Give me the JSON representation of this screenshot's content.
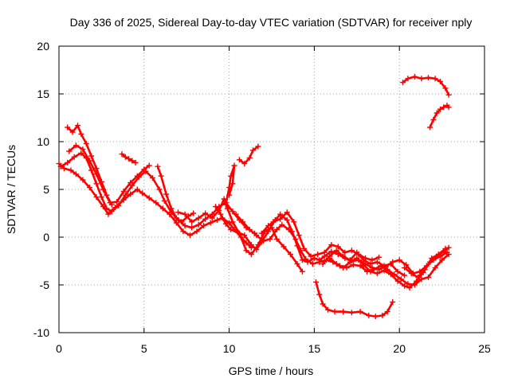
{
  "chart_data": {
    "type": "line",
    "title": "Day 336 of 2025, Sidereal Day-to-day VTEC variation (SDTVAR) for receiver nply",
    "xlabel": "GPS time / hours",
    "ylabel": "SDTVAR / TECUs",
    "xlim": [
      0,
      25
    ],
    "ylim": [
      -10,
      20
    ],
    "xticks": [
      "0",
      "5",
      "10",
      "15",
      "20",
      "25"
    ],
    "yticks": [
      "-10",
      "-5",
      "0",
      "5",
      "10",
      "15",
      "20"
    ],
    "grid": true,
    "series_color": "#ff0000",
    "marker": "plus",
    "series": [
      {
        "name": "trace-1",
        "points": [
          [
            0.0,
            7.7
          ],
          [
            0.3,
            7.2
          ],
          [
            0.7,
            7.0
          ],
          [
            1.0,
            6.6
          ],
          [
            1.4,
            6.0
          ],
          [
            1.8,
            5.2
          ],
          [
            2.2,
            4.2
          ],
          [
            2.6,
            3.2
          ],
          [
            2.9,
            2.4
          ],
          [
            3.3,
            3.1
          ],
          [
            3.8,
            3.9
          ],
          [
            4.2,
            4.5
          ],
          [
            4.6,
            5.0
          ],
          [
            4.9,
            4.6
          ],
          [
            5.3,
            4.1
          ],
          [
            5.7,
            3.6
          ],
          [
            6.1,
            3.0
          ],
          [
            6.5,
            2.4
          ],
          [
            6.9,
            1.5
          ],
          [
            7.3,
            0.6
          ],
          [
            7.7,
            0.2
          ],
          [
            8.1,
            0.6
          ],
          [
            8.5,
            1.2
          ],
          [
            8.9,
            1.5
          ],
          [
            9.3,
            1.8
          ],
          [
            9.6,
            2.0
          ],
          [
            10.0,
            1.5
          ],
          [
            10.3,
            0.8
          ],
          [
            10.7,
            0.0
          ],
          [
            11.0,
            -0.6
          ],
          [
            11.3,
            -1.1
          ]
        ]
      },
      {
        "name": "trace-2",
        "points": [
          [
            0.1,
            7.4
          ],
          [
            0.5,
            7.8
          ],
          [
            0.9,
            8.4
          ],
          [
            1.3,
            8.8
          ],
          [
            1.6,
            8.3
          ],
          [
            1.9,
            7.0
          ],
          [
            2.2,
            5.6
          ],
          [
            2.5,
            4.2
          ],
          [
            2.8,
            3.0
          ],
          [
            3.1,
            2.7
          ],
          [
            3.5,
            3.3
          ],
          [
            3.9,
            4.4
          ],
          [
            4.3,
            5.4
          ],
          [
            4.7,
            6.3
          ],
          [
            5.1,
            6.9
          ],
          [
            5.5,
            6.2
          ],
          [
            5.9,
            5.0
          ],
          [
            6.2,
            3.8
          ],
          [
            6.6,
            2.6
          ],
          [
            7.0,
            1.8
          ],
          [
            7.4,
            1.2
          ],
          [
            7.8,
            1.0
          ],
          [
            8.2,
            1.3
          ],
          [
            8.6,
            1.9
          ],
          [
            9.0,
            2.4
          ],
          [
            9.4,
            3.2
          ],
          [
            9.8,
            3.6
          ],
          [
            10.2,
            2.7
          ],
          [
            10.6,
            1.8
          ],
          [
            11.0,
            1.0
          ],
          [
            11.5,
            0.4
          ]
        ]
      },
      {
        "name": "trace-3",
        "points": [
          [
            0.6,
            9.0
          ],
          [
            1.0,
            9.6
          ],
          [
            1.4,
            9.2
          ],
          [
            1.8,
            8.0
          ],
          [
            2.2,
            6.6
          ],
          [
            2.6,
            5.0
          ],
          [
            3.0,
            3.6
          ],
          [
            3.4,
            3.7
          ],
          [
            3.8,
            4.8
          ],
          [
            4.2,
            5.7
          ],
          [
            4.6,
            6.4
          ],
          [
            5.0,
            7.1
          ],
          [
            5.3,
            7.5
          ]
        ]
      },
      {
        "name": "trace-4",
        "points": [
          [
            0.5,
            11.5
          ],
          [
            0.8,
            11.0
          ],
          [
            1.1,
            11.7
          ],
          [
            1.3,
            10.8
          ],
          [
            1.6,
            9.8
          ],
          [
            1.9,
            8.5
          ],
          [
            2.2,
            7.2
          ],
          [
            2.5,
            5.8
          ],
          [
            2.8,
            4.4
          ],
          [
            3.1,
            3.4
          ]
        ]
      },
      {
        "name": "trace-5",
        "points": [
          [
            3.7,
            8.7
          ],
          [
            3.9,
            8.4
          ],
          [
            4.1,
            8.2
          ],
          [
            4.3,
            8.0
          ],
          [
            4.5,
            7.8
          ]
        ]
      },
      {
        "name": "trace-6",
        "points": [
          [
            5.8,
            7.4
          ],
          [
            6.0,
            6.4
          ],
          [
            6.3,
            4.5
          ],
          [
            6.6,
            3.0
          ],
          [
            6.9,
            2.0
          ],
          [
            7.2,
            1.6
          ],
          [
            7.6,
            2.2
          ],
          [
            7.9,
            2.5
          ]
        ]
      },
      {
        "name": "trace-7",
        "points": [
          [
            9.8,
            3.4
          ],
          [
            10.0,
            5.2
          ],
          [
            10.1,
            6.4
          ],
          [
            10.3,
            7.5
          ],
          [
            10.2,
            5.6
          ],
          [
            10.0,
            4.4
          ]
        ]
      },
      {
        "name": "trace-8",
        "points": [
          [
            10.6,
            8.1
          ],
          [
            10.9,
            7.7
          ],
          [
            11.2,
            8.3
          ],
          [
            11.4,
            9.1
          ],
          [
            11.7,
            9.5
          ]
        ]
      },
      {
        "name": "trace-9",
        "points": [
          [
            9.2,
            3.2
          ],
          [
            9.5,
            2.4
          ],
          [
            9.8,
            1.4
          ],
          [
            10.1,
            0.8
          ],
          [
            10.5,
            0.5
          ],
          [
            10.9,
            0.2
          ],
          [
            11.3,
            -0.8
          ],
          [
            11.6,
            -1.3
          ],
          [
            11.9,
            -0.5
          ],
          [
            12.3,
            0.6
          ],
          [
            12.7,
            1.8
          ],
          [
            13.0,
            2.4
          ],
          [
            13.4,
            1.8
          ],
          [
            13.7,
            0.6
          ],
          [
            14.0,
            -0.9
          ],
          [
            14.3,
            -2.4
          ],
          [
            14.6,
            -2.6
          ],
          [
            15.0,
            -2.2
          ],
          [
            15.3,
            -2.4
          ],
          [
            15.6,
            -2.0
          ],
          [
            16.0,
            -1.5
          ],
          [
            16.4,
            -1.8
          ],
          [
            16.8,
            -2.2
          ],
          [
            17.2,
            -2.5
          ],
          [
            17.6,
            -2.4
          ],
          [
            18.0,
            -2.8
          ],
          [
            18.4,
            -3.2
          ],
          [
            18.8,
            -3.4
          ],
          [
            19.2,
            -3.1
          ],
          [
            19.6,
            -2.6
          ],
          [
            20.0,
            -2.4
          ],
          [
            20.4,
            -2.9
          ],
          [
            20.8,
            -3.8
          ],
          [
            21.2,
            -3.6
          ],
          [
            21.6,
            -3.0
          ],
          [
            22.0,
            -2.4
          ],
          [
            22.4,
            -2.0
          ],
          [
            22.8,
            -1.6
          ]
        ]
      },
      {
        "name": "trace-10",
        "points": [
          [
            10.4,
            2.4
          ],
          [
            10.8,
            1.6
          ],
          [
            11.2,
            0.8
          ],
          [
            11.6,
            0.2
          ],
          [
            12.0,
            -0.4
          ],
          [
            12.4,
            -0.2
          ],
          [
            12.8,
            0.8
          ],
          [
            13.1,
            1.3
          ],
          [
            13.5,
            0.8
          ],
          [
            13.9,
            -0.2
          ],
          [
            14.2,
            -1.4
          ],
          [
            14.5,
            -2.3
          ],
          [
            14.9,
            -2.8
          ],
          [
            15.3,
            -2.6
          ],
          [
            15.7,
            -2.4
          ],
          [
            16.1,
            -2.6
          ],
          [
            16.5,
            -3.0
          ],
          [
            16.9,
            -3.2
          ],
          [
            17.3,
            -2.9
          ],
          [
            17.7,
            -3.0
          ],
          [
            18.1,
            -3.6
          ],
          [
            18.5,
            -3.4
          ],
          [
            18.9,
            -3.0
          ],
          [
            19.3,
            -3.4
          ],
          [
            19.7,
            -3.9
          ],
          [
            20.1,
            -4.4
          ],
          [
            20.5,
            -4.9
          ],
          [
            20.9,
            -5.0
          ],
          [
            21.3,
            -4.4
          ],
          [
            21.7,
            -4.2
          ],
          [
            22.1,
            -3.2
          ],
          [
            22.5,
            -2.4
          ],
          [
            22.9,
            -1.8
          ]
        ]
      },
      {
        "name": "trace-11",
        "points": [
          [
            11.9,
            0.4
          ],
          [
            12.3,
            1.2
          ],
          [
            12.6,
            1.6
          ],
          [
            13.0,
            1.9
          ],
          [
            13.4,
            2.6
          ],
          [
            13.8,
            1.6
          ],
          [
            14.1,
            0.2
          ],
          [
            14.4,
            -1.2
          ],
          [
            14.8,
            -2.0
          ],
          [
            15.2,
            -1.8
          ],
          [
            15.6,
            -1.6
          ],
          [
            16.0,
            -0.8
          ],
          [
            16.4,
            -1.0
          ],
          [
            16.8,
            -1.6
          ],
          [
            17.2,
            -1.4
          ],
          [
            17.6,
            -1.8
          ],
          [
            18.0,
            -2.2
          ],
          [
            18.4,
            -2.4
          ],
          [
            18.8,
            -2.1
          ]
        ]
      },
      {
        "name": "trace-12",
        "points": [
          [
            15.9,
            -2.2
          ],
          [
            16.3,
            -2.8
          ],
          [
            16.7,
            -3.2
          ],
          [
            17.1,
            -2.6
          ],
          [
            17.5,
            -2.2
          ],
          [
            17.9,
            -2.9
          ],
          [
            18.3,
            -3.6
          ],
          [
            18.7,
            -3.8
          ],
          [
            19.1,
            -3.5
          ],
          [
            19.5,
            -3.9
          ],
          [
            19.9,
            -4.6
          ],
          [
            20.3,
            -5.1
          ],
          [
            20.6,
            -5.3
          ],
          [
            21.0,
            -4.6
          ],
          [
            21.4,
            -3.7
          ],
          [
            21.8,
            -2.6
          ],
          [
            22.2,
            -2.0
          ],
          [
            22.6,
            -1.5
          ],
          [
            22.9,
            -1.1
          ]
        ]
      },
      {
        "name": "trace-13",
        "points": [
          [
            15.1,
            -4.7
          ],
          [
            15.3,
            -6.0
          ],
          [
            15.5,
            -7.0
          ],
          [
            15.8,
            -7.6
          ],
          [
            16.2,
            -7.8
          ],
          [
            16.7,
            -7.8
          ],
          [
            17.2,
            -7.9
          ],
          [
            17.7,
            -7.8
          ],
          [
            18.2,
            -8.2
          ],
          [
            18.6,
            -8.3
          ],
          [
            19.0,
            -8.2
          ],
          [
            19.3,
            -7.8
          ],
          [
            19.6,
            -6.8
          ]
        ]
      },
      {
        "name": "trace-14",
        "points": [
          [
            20.2,
            16.2
          ],
          [
            20.5,
            16.6
          ],
          [
            20.9,
            16.8
          ],
          [
            21.3,
            16.6
          ],
          [
            21.7,
            16.7
          ],
          [
            22.1,
            16.6
          ],
          [
            22.4,
            16.3
          ],
          [
            22.7,
            15.6
          ],
          [
            22.9,
            14.9
          ]
        ]
      },
      {
        "name": "trace-15",
        "points": [
          [
            21.8,
            11.5
          ],
          [
            22.0,
            12.3
          ],
          [
            22.2,
            13.0
          ],
          [
            22.4,
            13.4
          ],
          [
            22.6,
            13.6
          ],
          [
            22.8,
            13.8
          ],
          [
            22.9,
            13.6
          ]
        ]
      },
      {
        "name": "trace-16",
        "points": [
          [
            7.0,
            2.6
          ],
          [
            7.4,
            2.4
          ],
          [
            7.8,
            1.6
          ],
          [
            8.2,
            2.0
          ],
          [
            8.6,
            2.5
          ],
          [
            9.0,
            2.0
          ],
          [
            9.4,
            2.8
          ],
          [
            9.7,
            4.0
          ],
          [
            9.9,
            3.0
          ],
          [
            10.2,
            1.6
          ],
          [
            10.6,
            0.4
          ],
          [
            11.0,
            -1.4
          ],
          [
            11.3,
            -1.8
          ],
          [
            11.7,
            -0.8
          ],
          [
            12.1,
            0.6
          ],
          [
            12.5,
            1.0
          ],
          [
            12.8,
            -0.2
          ],
          [
            13.2,
            -1.0
          ],
          [
            13.6,
            -1.8
          ],
          [
            14.0,
            -2.8
          ],
          [
            14.3,
            -3.6
          ]
        ]
      },
      {
        "name": "trace-17",
        "points": [
          [
            20.3,
            -3.2
          ],
          [
            20.7,
            -3.8
          ],
          [
            21.1,
            -4.2
          ],
          [
            21.5,
            -3.4
          ],
          [
            21.9,
            -2.2
          ],
          [
            22.3,
            -1.8
          ],
          [
            22.7,
            -1.2
          ]
        ]
      },
      {
        "name": "trace-18",
        "points": [
          [
            15.5,
            -2.8
          ],
          [
            15.9,
            -2.0
          ],
          [
            16.3,
            -1.4
          ],
          [
            16.7,
            -2.0
          ],
          [
            17.1,
            -2.4
          ],
          [
            17.5,
            -1.6
          ],
          [
            17.9,
            -2.4
          ],
          [
            18.3,
            -2.8
          ],
          [
            18.7,
            -2.6
          ],
          [
            19.1,
            -3.0
          ],
          [
            19.5,
            -2.8
          ],
          [
            19.9,
            -3.6
          ],
          [
            20.3,
            -4.0
          ]
        ]
      }
    ]
  }
}
